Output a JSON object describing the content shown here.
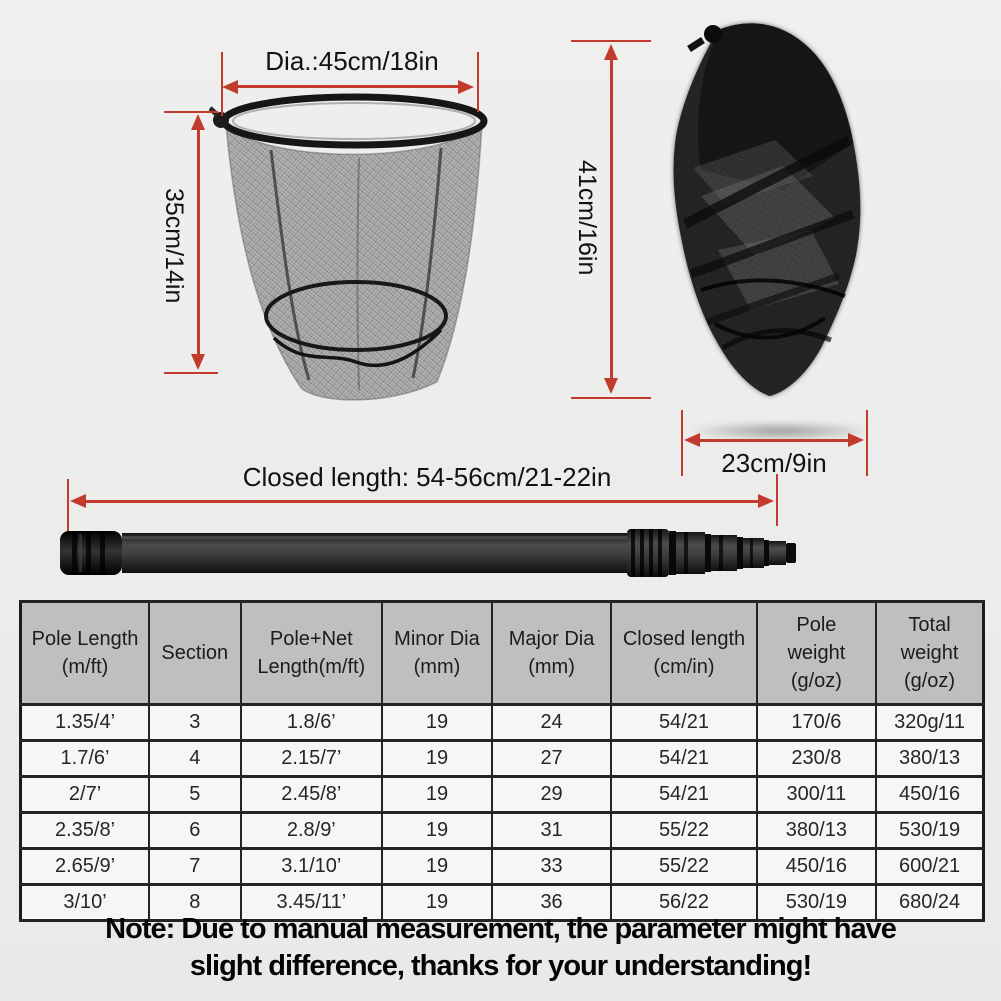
{
  "colors": {
    "background": "#ededed",
    "dimension_red": "#c23b2c",
    "table_header_bg": "#bfbfbd",
    "table_body_bg": "#f6f6f4",
    "table_border": "#1b1b1b"
  },
  "dimensions": {
    "hoop_diameter": "Dia.:45cm/18in",
    "net_depth": "35cm/14in",
    "folded_height": "41cm/16in",
    "folded_width": "23cm/9in",
    "closed_length": "Closed length: 54-56cm/21-22in"
  },
  "table": {
    "headers": [
      {
        "lines": [
          "Pole Length",
          "(m/ft)"
        ]
      },
      {
        "lines": [
          "Section"
        ]
      },
      {
        "lines": [
          "Pole+Net",
          "Length(m/ft)"
        ]
      },
      {
        "lines": [
          "Minor Dia",
          "(mm)"
        ]
      },
      {
        "lines": [
          "Major Dia",
          "(mm)"
        ]
      },
      {
        "lines": [
          "Closed length",
          "(cm/in)"
        ]
      },
      {
        "lines": [
          "Pole",
          "weight",
          "(g/oz)"
        ]
      },
      {
        "lines": [
          "Total",
          "weight",
          "(g/oz)"
        ]
      }
    ],
    "rows": [
      [
        "1.35/4’",
        "3",
        "1.8/6’",
        "19",
        "24",
        "54/21",
        "170/6",
        "320g/11"
      ],
      [
        "1.7/6’",
        "4",
        "2.15/7’",
        "19",
        "27",
        "54/21",
        "230/8",
        "380/13"
      ],
      [
        "2/7’",
        "5",
        "2.45/8’",
        "19",
        "29",
        "54/21",
        "300/11",
        "450/16"
      ],
      [
        "2.35/8’",
        "6",
        "2.8/9’",
        "19",
        "31",
        "55/22",
        "380/13",
        "530/19"
      ],
      [
        "2.65/9’",
        "7",
        "3.1/10’",
        "19",
        "33",
        "55/22",
        "450/16",
        "600/21"
      ],
      [
        "3/10’",
        "8",
        "3.45/11’",
        "19",
        "36",
        "56/22",
        "530/19",
        "680/24"
      ]
    ]
  },
  "note": {
    "line1": "Note: Due to manual measurement, the parameter might have",
    "line2": "slight difference, thanks for your understanding!"
  }
}
